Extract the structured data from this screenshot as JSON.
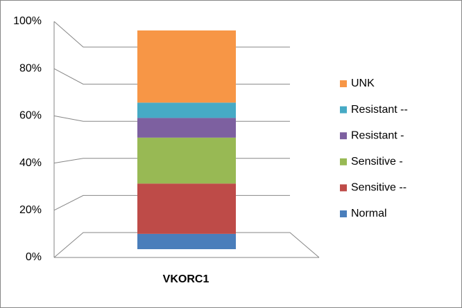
{
  "chart_data": {
    "type": "bar",
    "stacked": true,
    "categories": [
      "VKORC1"
    ],
    "series": [
      {
        "name": "Normal",
        "color": "#4a7ebb",
        "values": [
          7
        ]
      },
      {
        "name": "Sensitive --",
        "color": "#be4b48",
        "values": [
          23
        ]
      },
      {
        "name": "Sensitive -",
        "color": "#98b954",
        "values": [
          21
        ]
      },
      {
        "name": "Resistant -",
        "color": "#7d60a0",
        "values": [
          9
        ]
      },
      {
        "name": "Resistant --",
        "color": "#46aac5",
        "values": [
          7
        ]
      },
      {
        "name": "UNK",
        "color": "#f79646",
        "values": [
          33
        ]
      }
    ],
    "ylim": [
      0,
      100
    ],
    "yticks": [
      {
        "value": 0,
        "label": "0%"
      },
      {
        "value": 20,
        "label": "20%"
      },
      {
        "value": 40,
        "label": "40%"
      },
      {
        "value": 60,
        "label": "60%"
      },
      {
        "value": 80,
        "label": "80%"
      },
      {
        "value": 100,
        "label": "100%"
      }
    ],
    "grid": true,
    "legend": "right"
  }
}
